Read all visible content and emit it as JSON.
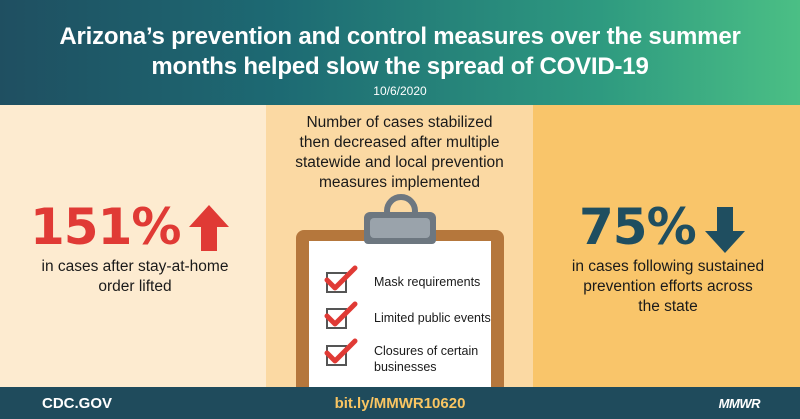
{
  "header": {
    "title_line1": "Arizona’s prevention and control measures over the summer",
    "title_line2": "months helped slow the spread of COVID-19",
    "date": "10/6/2020"
  },
  "left_stat": {
    "value": "151%",
    "direction": "up-arrow-icon",
    "line1": "in cases after stay-at-home",
    "line2": "order lifted",
    "color": "#e03a35"
  },
  "middle": {
    "heading_line1": "Number of cases stabilized",
    "heading_line2": "then decreased after multiple",
    "heading_line3": "statewide and local prevention",
    "heading_line4": "measures implemented",
    "checklist": [
      {
        "label": "Mask requirements"
      },
      {
        "label": "Limited public events"
      },
      {
        "label_line1": "Closures of certain",
        "label_line2": "businesses"
      }
    ]
  },
  "right_stat": {
    "value": "75%",
    "direction": "down-arrow-icon",
    "line1": "in cases following sustained",
    "line2": "prevention efforts across",
    "line3": "the state",
    "color": "#1f4e60"
  },
  "footer": {
    "left": "CDC.GOV",
    "center": "bit.ly/MMWR10620",
    "right": "MMWR"
  }
}
